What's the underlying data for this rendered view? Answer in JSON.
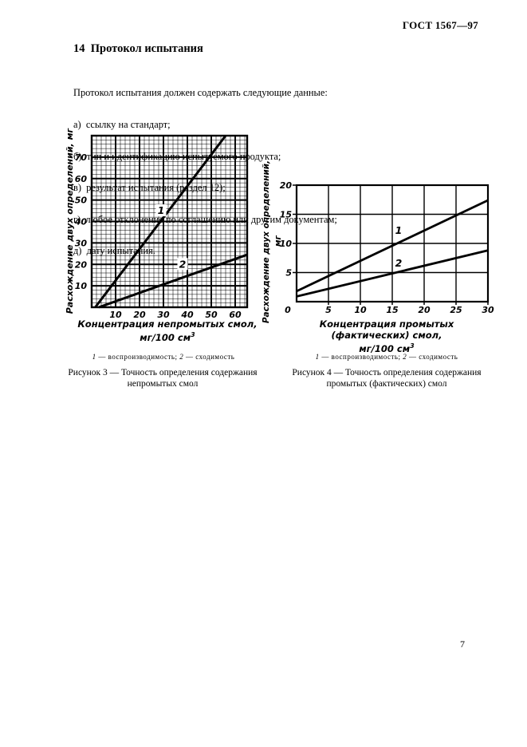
{
  "page": {
    "header_right": "ГОСТ 1567—97",
    "section_title": "14  Протокол испытания",
    "intro": "Протокол испытания должен содержать следующие данные:",
    "list": [
      "а)  ссылку на стандарт;",
      "б)  тип и идентификацию испытуемого продукта;",
      "в)  результат испытания (раздел 12);",
      "г)  любое отклонение по соглашению или другим документам;",
      "д)  дату испытания."
    ],
    "page_number": "7"
  },
  "figure3": {
    "ylabel": "Расхождение двух определений, мг",
    "xlabel_line1": "Концентрация непромытых смол,",
    "xlabel_units": "мг/100 см",
    "xlabel_units_sup": "3",
    "legend": {
      "k1": "1",
      "t1": " — воспроизводимость; ",
      "k2": "2",
      "t2": " — сходимость"
    },
    "caption_line1": "Рисунок 3 — Точность определения содержания",
    "caption_line2": "непромытых смол"
  },
  "figure4": {
    "ylabel_main": "Расхождение двух определений,",
    "ylabel_units": "мг",
    "xlabel_line1": "Концентрация промытых (фактических) смол,",
    "xlabel_units": "мг/100 см",
    "xlabel_units_sup": "3",
    "legend": {
      "k1": "1",
      "t1": " — воспроизводимость; ",
      "k2": "2",
      "t2": " — сходимость"
    },
    "caption_line1": "Рисунок 4 — Точность определения содержания",
    "caption_line2": "промытых (фактических) смол"
  },
  "chart_data": [
    {
      "type": "line",
      "figure": "Рисунок 3",
      "title": "Точность определения содержания непромытых смол",
      "xlabel": "Концентрация непромытых смол, мг/100 см³",
      "ylabel": "Расхождение двух определений, мг",
      "xlim": [
        0,
        65
      ],
      "ylim": [
        0,
        80
      ],
      "xticks": [
        10,
        20,
        30,
        40,
        50,
        60
      ],
      "yticks": [
        10,
        20,
        30,
        40,
        50,
        60,
        70
      ],
      "grid": "fine graph paper: minor every 2 units, major every 10 units",
      "legend_position": "below",
      "series": [
        {
          "label": "1",
          "name": "воспроизводимость",
          "points": [
            [
              1.5,
              0
            ],
            [
              56,
              80
            ]
          ],
          "label_pos": [
            29,
            45
          ]
        },
        {
          "label": "2",
          "name": "сходимость",
          "points": [
            [
              3,
              0
            ],
            [
              65,
              24.5
            ]
          ],
          "label_pos": [
            38,
            20
          ]
        }
      ]
    },
    {
      "type": "line",
      "figure": "Рисунок 4",
      "title": "Точность определения содержания промытых (фактических) смол",
      "xlabel": "Концентрация промытых (фактических) смол, мг/100 см³",
      "ylabel": "Расхождение двух определений, мг",
      "xlim": [
        0,
        30
      ],
      "ylim": [
        0,
        20
      ],
      "xticks": [
        0,
        5,
        10,
        15,
        20,
        25,
        30
      ],
      "yticks": [
        5,
        10,
        15,
        20
      ],
      "grid": "major every 5 units",
      "legend_position": "below",
      "series": [
        {
          "label": "1",
          "name": "воспроизводимость",
          "points": [
            [
              0,
              1.8
            ],
            [
              30,
              17.4
            ]
          ],
          "label_pos": [
            16,
            12.2
          ]
        },
        {
          "label": "2",
          "name": "сходимость",
          "points": [
            [
              0,
              0.9
            ],
            [
              30,
              8.8
            ]
          ],
          "label_pos": [
            16,
            6.6
          ]
        }
      ]
    }
  ]
}
